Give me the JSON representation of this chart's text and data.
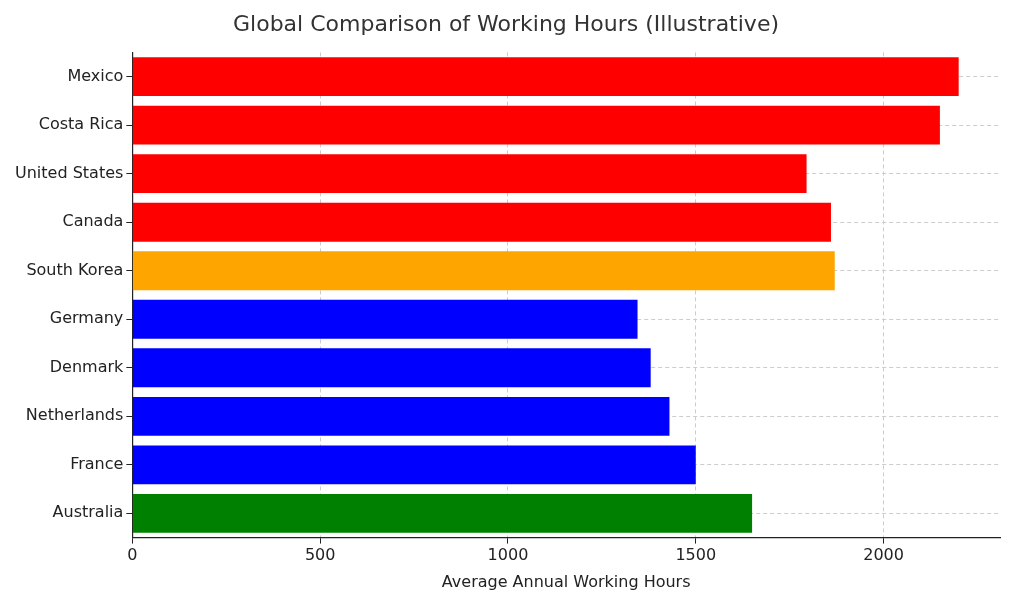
{
  "chart_data": {
    "type": "bar",
    "orientation": "horizontal",
    "title": "Global Comparison of Working Hours (Illustrative)",
    "xlabel": "Average Annual Working Hours",
    "categories": [
      "Mexico",
      "Costa Rica",
      "United States",
      "Canada",
      "South Korea",
      "Germany",
      "Denmark",
      "Netherlands",
      "France",
      "Australia"
    ],
    "values": [
      2200,
      2150,
      1795,
      1860,
      1870,
      1345,
      1380,
      1430,
      1500,
      1650
    ],
    "colors": [
      "#ff0000",
      "#ff0000",
      "#ff0000",
      "#ff0000",
      "#ffa500",
      "#0000ff",
      "#0000ff",
      "#0000ff",
      "#0000ff",
      "#008000"
    ],
    "xlim": [
      0,
      2310
    ],
    "xticks": [
      0,
      500,
      1000,
      1500,
      2000
    ],
    "grid": true,
    "legend": false
  }
}
